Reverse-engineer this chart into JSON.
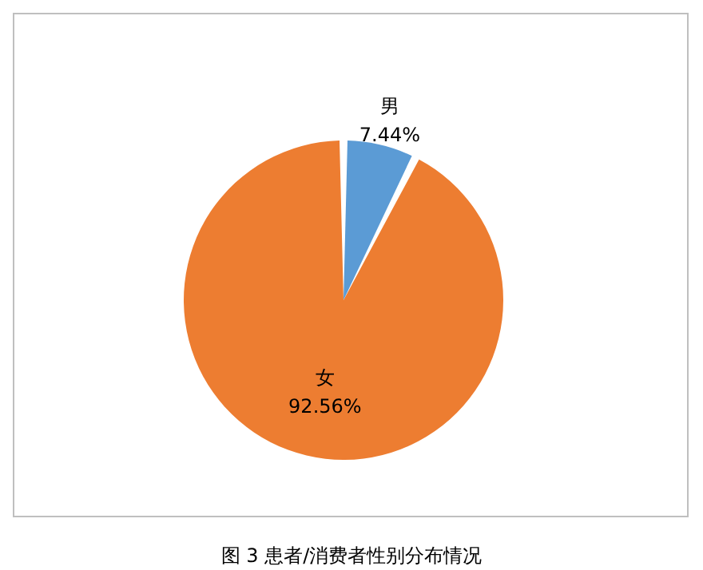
{
  "chart_data": {
    "type": "pie",
    "categories": [
      "男",
      "女"
    ],
    "values": [
      7.44,
      92.56
    ],
    "colors": [
      "#5b9bd5",
      "#ed7d31"
    ],
    "value_labels": [
      "7.44%",
      "92.56%"
    ],
    "annotations": [
      "图 3 患者/消费者性别分布情况"
    ]
  }
}
